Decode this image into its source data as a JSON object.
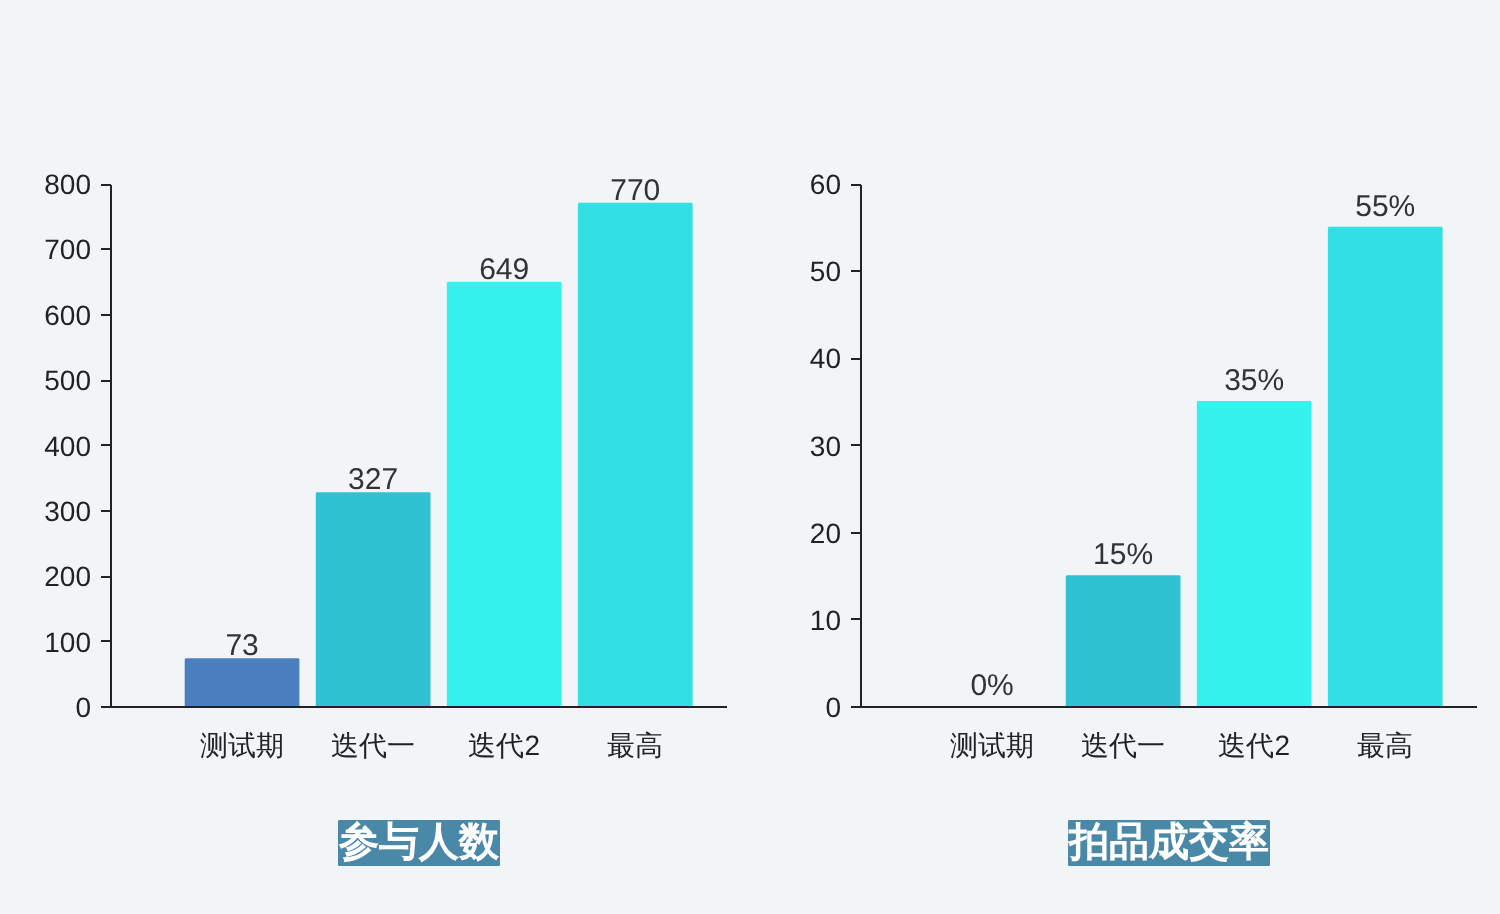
{
  "chart_data": [
    {
      "type": "bar",
      "title": "参与人数",
      "categories": [
        "测试期",
        "迭代一",
        "迭代2",
        "最高"
      ],
      "values": [
        73,
        327,
        649,
        770
      ],
      "value_labels": [
        "73",
        "327",
        "649",
        "770"
      ],
      "colors": [
        "#4a80c0",
        "#2ec2d2",
        "#36f2ee",
        "#32e0e4"
      ],
      "ylim": [
        0,
        800
      ],
      "yticks": [
        0,
        100,
        200,
        300,
        400,
        500,
        600,
        700,
        800
      ],
      "grid": false
    },
    {
      "type": "bar",
      "title": "拍品成交率",
      "categories": [
        "测试期",
        "迭代一",
        "迭代2",
        "最高"
      ],
      "values": [
        0,
        15,
        35,
        55
      ],
      "value_labels": [
        "0%",
        "15%",
        "35%",
        "55%"
      ],
      "colors": [
        "#4a80c0",
        "#2ec2d2",
        "#36f2ee",
        "#32e0e4"
      ],
      "ylim": [
        0,
        60
      ],
      "yticks": [
        0,
        10,
        20,
        30,
        40,
        50,
        60
      ],
      "grid": false
    }
  ]
}
